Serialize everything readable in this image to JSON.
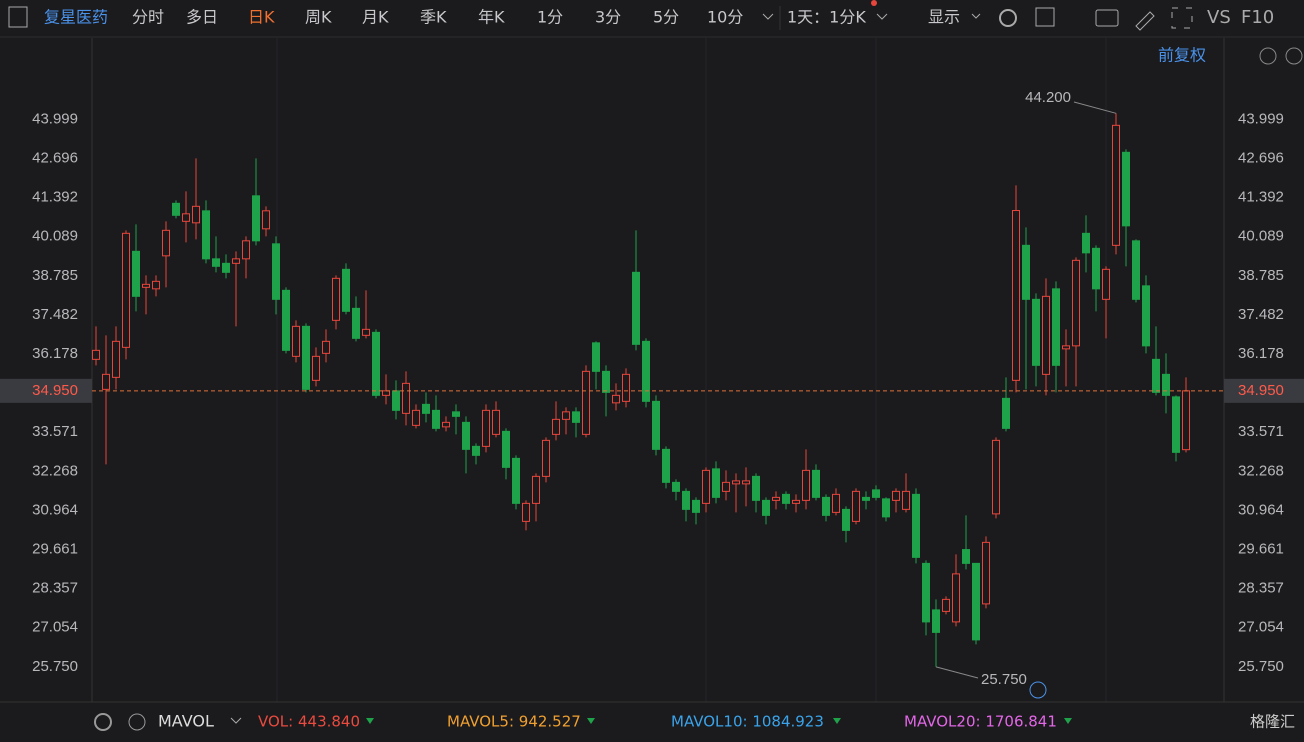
{
  "toolbar": {
    "stock": "复星医药",
    "tabs": [
      "分时",
      "多日",
      "日K",
      "周K",
      "月K",
      "季K",
      "年K",
      "1分",
      "3分",
      "5分",
      "10分"
    ],
    "period": "1天：1分K",
    "display": "显示",
    "vs": "VS",
    "f10": "F10",
    "adjust": "前复权"
  },
  "footer": {
    "indicator": "MAVOL",
    "values": [
      {
        "text": "VOL: 443.840",
        "color": "#ea4a3f"
      },
      {
        "text": "MAVOL5: 942.527",
        "color": "#f0a030"
      },
      {
        "text": "MAVOL10: 1084.923",
        "color": "#3aa3ea"
      },
      {
        "text": "MAVOL20: 1706.841",
        "color": "#e266e6"
      }
    ],
    "brand": "格隆汇"
  },
  "chart_data": {
    "type": "candlestick",
    "up_color": "#e8463c",
    "down_color": "#1ea34a",
    "ylim": [
      24.58,
      46.71
    ],
    "yticks": [
      43.999,
      42.696,
      41.392,
      40.089,
      38.785,
      37.482,
      36.178,
      33.571,
      32.268,
      30.964,
      29.661,
      28.357,
      27.054,
      {
        "value": 25.75,
        "label": "25.750"
      }
    ],
    "last_price": {
      "value": 34.95,
      "label": "34.950"
    },
    "high_marker": {
      "value": 44.2,
      "label": "44.200"
    },
    "low_marker": {
      "value": 25.75,
      "label": "25.750"
    },
    "open": [
      36.0,
      35.0,
      35.4,
      36.4,
      39.6,
      38.4,
      38.35,
      39.45,
      41.2,
      40.6,
      40.55,
      40.95,
      39.35,
      39.2,
      39.2,
      39.35,
      41.45,
      40.35,
      39.85,
      38.3,
      36.1,
      37.1,
      35.3,
      36.2,
      37.3,
      39.0,
      37.7,
      36.8,
      36.9,
      34.8,
      34.95,
      34.2,
      33.8,
      34.5,
      34.3,
      33.75,
      34.25,
      33.9,
      33.1,
      33.1,
      33.5,
      33.6,
      32.7,
      30.6,
      31.2,
      32.1,
      33.5,
      34.0,
      34.25,
      33.5,
      36.55,
      35.6,
      34.55,
      34.6,
      38.9,
      36.6,
      34.6,
      33.0,
      31.9,
      31.6,
      31.3,
      31.2,
      32.35,
      31.6,
      31.85,
      31.85,
      32.1,
      31.3,
      31.3,
      31.5,
      31.2,
      31.3,
      32.3,
      31.4,
      30.9,
      31.0,
      30.6,
      31.4,
      31.65,
      31.35,
      31.3,
      31.0,
      31.5,
      29.2,
      27.65,
      27.6,
      27.25,
      29.66,
      29.2,
      27.85,
      30.85,
      34.7,
      35.3,
      39.8,
      38.0,
      35.5,
      38.35,
      36.35,
      36.45,
      40.2,
      39.7,
      38.0,
      39.8,
      42.9,
      39.95,
      38.45,
      36.0,
      35.5,
      34.75,
      32.99
    ],
    "high": [
      37.1,
      36.8,
      37.1,
      40.3,
      40.5,
      38.8,
      38.8,
      40.6,
      41.3,
      41.6,
      42.7,
      41.3,
      40.1,
      39.5,
      39.6,
      40.1,
      42.7,
      41.1,
      40.1,
      38.4,
      37.3,
      37.2,
      36.4,
      37.0,
      38.8,
      39.2,
      38.1,
      38.3,
      37.0,
      35.5,
      35.3,
      35.6,
      34.5,
      34.9,
      34.8,
      34.1,
      34.5,
      34.1,
      33.2,
      34.5,
      34.6,
      33.7,
      32.8,
      31.3,
      32.2,
      33.4,
      34.6,
      34.4,
      34.4,
      35.8,
      36.6,
      35.8,
      35.2,
      35.7,
      40.3,
      36.7,
      34.8,
      33.1,
      32.0,
      31.7,
      31.4,
      32.4,
      32.6,
      32.3,
      32.2,
      32.4,
      32.2,
      31.4,
      31.6,
      31.6,
      31.5,
      33.0,
      32.5,
      31.5,
      31.7,
      31.1,
      31.7,
      31.6,
      31.8,
      31.4,
      31.7,
      32.2,
      31.7,
      29.3,
      28.0,
      28.1,
      29.5,
      30.8,
      29.2,
      30.1,
      33.4,
      35.4,
      41.8,
      40.4,
      38.2,
      38.7,
      38.6,
      37.0,
      39.4,
      40.8,
      39.8,
      39.1,
      44.2,
      43.0,
      40.0,
      38.8,
      37.1,
      36.2,
      34.8,
      35.4
    ],
    "low": [
      35.8,
      32.5,
      35.0,
      36.0,
      37.6,
      37.5,
      38.1,
      38.4,
      40.7,
      39.9,
      40.0,
      39.2,
      38.9,
      38.7,
      37.1,
      38.7,
      39.8,
      40.1,
      37.5,
      36.2,
      35.9,
      34.9,
      35.1,
      35.9,
      37.0,
      37.5,
      36.6,
      36.7,
      34.7,
      34.5,
      34.0,
      33.8,
      33.7,
      33.9,
      33.6,
      33.6,
      33.5,
      32.2,
      32.5,
      32.9,
      33.4,
      32.0,
      31.0,
      30.3,
      30.6,
      31.9,
      33.3,
      33.5,
      33.4,
      33.4,
      35.0,
      34.1,
      34.3,
      34.4,
      36.3,
      34.4,
      32.8,
      31.7,
      31.3,
      30.6,
      30.5,
      30.9,
      31.2,
      31.3,
      30.9,
      31.1,
      30.9,
      30.5,
      31.0,
      31.0,
      30.9,
      31.0,
      31.3,
      30.6,
      30.8,
      29.9,
      30.5,
      31.0,
      31.3,
      30.6,
      30.9,
      30.9,
      29.2,
      26.8,
      25.75,
      27.5,
      27.1,
      29.0,
      26.5,
      27.7,
      30.7,
      33.6,
      34.9,
      35.0,
      35.1,
      34.8,
      34.9,
      35.1,
      35.1,
      38.9,
      37.6,
      36.7,
      39.5,
      39.1,
      37.9,
      36.2,
      34.8,
      34.2,
      32.6,
      32.9
    ],
    "close": [
      36.3,
      35.5,
      36.6,
      40.2,
      38.1,
      38.5,
      38.6,
      40.3,
      40.8,
      40.85,
      41.1,
      39.35,
      39.1,
      38.9,
      39.35,
      39.95,
      39.95,
      40.95,
      38.0,
      36.3,
      37.1,
      35.0,
      36.1,
      36.6,
      38.7,
      37.6,
      36.7,
      37.0,
      34.8,
      34.95,
      34.3,
      35.2,
      34.3,
      34.2,
      33.7,
      33.9,
      34.1,
      33.0,
      32.8,
      34.3,
      34.3,
      32.4,
      31.2,
      31.2,
      32.1,
      33.3,
      34.0,
      34.25,
      33.9,
      35.6,
      35.6,
      34.9,
      34.8,
      35.5,
      36.5,
      34.6,
      33.0,
      31.9,
      31.6,
      31.0,
      30.9,
      32.3,
      31.4,
      31.9,
      31.95,
      31.95,
      31.3,
      30.8,
      31.4,
      31.2,
      31.3,
      32.3,
      31.4,
      30.8,
      31.5,
      30.3,
      31.6,
      31.3,
      31.4,
      30.75,
      31.6,
      31.6,
      29.4,
      27.25,
      26.9,
      28.0,
      28.85,
      29.2,
      26.65,
      29.9,
      33.3,
      33.7,
      40.96,
      38.0,
      35.8,
      38.1,
      35.8,
      36.45,
      39.3,
      39.55,
      38.35,
      39.0,
      43.8,
      40.45,
      38.0,
      36.45,
      34.9,
      34.8,
      32.9,
      34.95
    ]
  }
}
